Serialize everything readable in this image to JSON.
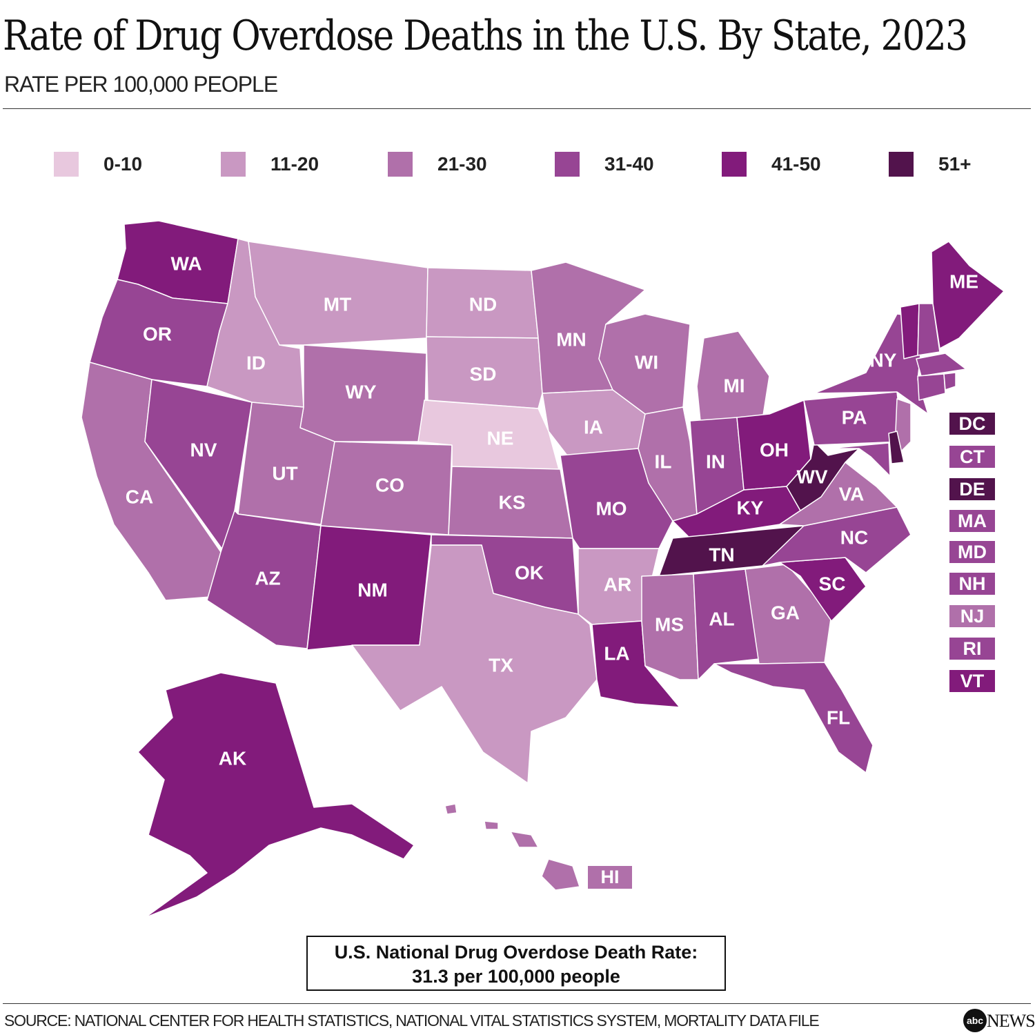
{
  "header": {
    "title": "Rate of Drug Overdose Deaths in the U.S. By State, 2023",
    "subtitle": "RATE PER 100,000 PEOPLE"
  },
  "legend": {
    "bins": [
      {
        "label": "0-10",
        "color": "#e8c8de"
      },
      {
        "label": "11-20",
        "color": "#c998c2"
      },
      {
        "label": "21-30",
        "color": "#b070aa"
      },
      {
        "label": "31-40",
        "color": "#974594"
      },
      {
        "label": "41-50",
        "color": "#821b7b"
      },
      {
        "label": "51+",
        "color": "#52134c"
      }
    ]
  },
  "states": {
    "WA": "41-50",
    "OR": "31-40",
    "CA": "21-30",
    "NV": "31-40",
    "ID": "11-20",
    "MT": "11-20",
    "WY": "21-30",
    "UT": "21-30",
    "AZ": "31-40",
    "CO": "21-30",
    "NM": "41-50",
    "ND": "11-20",
    "SD": "11-20",
    "NE": "0-10",
    "KS": "21-30",
    "OK": "31-40",
    "TX": "11-20",
    "MN": "21-30",
    "IA": "11-20",
    "MO": "31-40",
    "AR": "11-20",
    "LA": "41-50",
    "WI": "21-30",
    "IL": "21-30",
    "MS": "21-30",
    "MI": "21-30",
    "IN": "31-40",
    "OH": "41-50",
    "KY": "41-50",
    "TN": "51+",
    "AL": "31-40",
    "GA": "21-30",
    "FL": "31-40",
    "SC": "41-50",
    "NC": "31-40",
    "VA": "21-30",
    "WV": "51+",
    "PA": "31-40",
    "NY": "31-40",
    "ME": "41-50",
    "VT": "41-50",
    "NH": "31-40",
    "MA": "31-40",
    "CT": "31-40",
    "RI": "31-40",
    "NJ": "21-30",
    "DE": "51+",
    "MD": "31-40",
    "DC": "51+",
    "AK": "41-50",
    "HI": "21-30"
  },
  "small_states": [
    "DC",
    "CT",
    "DE",
    "MA",
    "MD",
    "NH",
    "NJ",
    "RI",
    "VT"
  ],
  "callout": {
    "line1": "U.S. National Drug Overdose Death Rate:",
    "line2": "31.3 per 100,000 people"
  },
  "footer": {
    "source": "SOURCE: NATIONAL CENTER FOR HEALTH STATISTICS, NATIONAL VITAL STATISTICS SYSTEM, MORTALITY DATA FILE",
    "logo_mark": "abc",
    "logo_word": "NEWS"
  }
}
